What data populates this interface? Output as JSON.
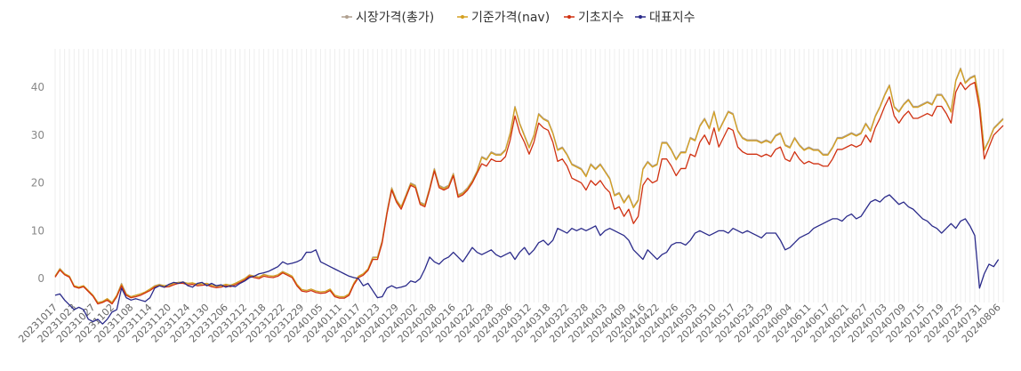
{
  "chart_data": {
    "type": "line",
    "ylim": [
      -5,
      48
    ],
    "y_ticks": [
      "0",
      "10",
      "20",
      "30",
      "40"
    ],
    "grid": true,
    "legend_position": "top-center",
    "x_tick_labels": [
      "20231017",
      "20231023",
      "20231027",
      "20231102",
      "20231108",
      "20231114",
      "20231120",
      "20231124",
      "20231130",
      "20231206",
      "20231212",
      "20231218",
      "20231222",
      "20231229",
      "20240105",
      "20240111",
      "20240117",
      "20240123",
      "20240129",
      "20240202",
      "20240208",
      "20240216",
      "20240222",
      "20240228",
      "20240306",
      "20240312",
      "20240318",
      "20240322",
      "20240328",
      "20240403",
      "20240409",
      "20240416",
      "20240422",
      "20240426",
      "20240503",
      "20240510",
      "20240517",
      "20240523",
      "20240529",
      "20240604",
      "20240611",
      "20240617",
      "20240621",
      "20240627",
      "20240703",
      "20240709",
      "20240715",
      "20240719",
      "20240725",
      "20240731",
      "20240806"
    ],
    "series": [
      {
        "name": "시장가격(총가)",
        "color": "#b0a090",
        "values": [
          0.5,
          2.1,
          1.0,
          0.5,
          -1.5,
          -1.8,
          -1.5,
          -2.5,
          -3.5,
          -5.0,
          -4.8,
          -4.2,
          -5.0,
          -3.5,
          -1.0,
          -3.2,
          -3.8,
          -3.5,
          -3.2,
          -2.8,
          -2.2,
          -1.5,
          -1.2,
          -1.5,
          -1.4,
          -1.0,
          -0.8,
          -0.7,
          -1.0,
          -0.9,
          -1.2,
          -1.1,
          -1.0,
          -1.4,
          -1.6,
          -1.5,
          -1.2,
          -1.4,
          -1.0,
          -0.5,
          0.0,
          0.8,
          0.5,
          0.3,
          0.9,
          0.6,
          0.5,
          0.8,
          1.5,
          1.0,
          0.5,
          -1.2,
          -2.3,
          -2.5,
          -2.2,
          -2.6,
          -2.8,
          -2.7,
          -2.2,
          -3.5,
          -3.8,
          -3.8,
          -3.2,
          -1.0,
          0.5,
          1.0,
          2.0,
          4.5,
          4.5,
          8.0,
          14.0,
          19.0,
          16.5,
          15.0,
          17.5,
          20.0,
          19.5,
          16.0,
          15.5,
          19.0,
          23.0,
          19.5,
          19.0,
          19.5,
          22.0,
          17.5,
          18.0,
          19.0,
          20.5,
          22.5,
          25.5,
          25.0,
          26.5,
          26.0,
          26.0,
          27.0,
          30.5,
          36.0,
          32.5,
          30.0,
          27.5,
          30.0,
          34.5,
          33.5,
          33.0,
          30.5,
          27.0,
          27.5,
          26.0,
          24.0,
          23.5,
          23.0,
          21.5,
          24.0,
          23.0,
          24.0,
          22.5,
          21.0,
          17.5,
          18.0,
          16.0,
          17.5,
          15.0,
          16.5,
          23.0,
          24.5,
          23.5,
          24.0,
          28.5,
          28.5,
          27.0,
          25.0,
          26.5,
          26.5,
          29.5,
          29.0,
          32.0,
          33.5,
          31.5,
          35.0,
          31.0,
          33.0,
          35.0,
          34.5,
          31.0,
          29.5,
          29.0,
          29.0,
          29.0,
          28.5,
          29.0,
          28.5,
          30.0,
          30.5,
          28.0,
          27.5,
          29.5,
          28.0,
          27.0,
          27.5,
          27.0,
          27.0,
          26.0,
          26.0,
          27.5,
          29.5,
          29.5,
          30.0,
          30.5,
          30.0,
          30.5,
          32.5,
          31.0,
          34.0,
          36.0,
          38.5,
          40.5,
          36.0,
          35.0,
          36.5,
          37.5,
          36.0,
          36.0,
          36.5,
          37.0,
          36.5,
          38.5,
          38.5,
          37.0,
          35.0,
          41.5,
          44.0,
          41.0,
          42.0,
          42.5,
          37.0,
          27.0,
          29.0,
          31.5,
          32.5,
          33.5
        ]
      },
      {
        "name": "기준가격(nav)",
        "color": "#d4a020",
        "values": [
          0.5,
          2.0,
          1.0,
          0.5,
          -1.5,
          -1.8,
          -1.5,
          -2.5,
          -3.5,
          -5.0,
          -4.8,
          -4.2,
          -5.0,
          -3.5,
          -1.2,
          -3.3,
          -3.8,
          -3.5,
          -3.2,
          -2.8,
          -2.2,
          -1.6,
          -1.3,
          -1.5,
          -1.4,
          -1.0,
          -0.8,
          -0.8,
          -1.0,
          -0.9,
          -1.2,
          -1.1,
          -1.0,
          -1.4,
          -1.6,
          -1.5,
          -1.2,
          -1.4,
          -1.0,
          -0.5,
          0.0,
          0.7,
          0.5,
          0.3,
          0.8,
          0.6,
          0.5,
          0.8,
          1.4,
          1.0,
          0.5,
          -1.2,
          -2.3,
          -2.5,
          -2.2,
          -2.6,
          -2.8,
          -2.7,
          -2.2,
          -3.5,
          -3.8,
          -3.8,
          -3.2,
          -1.0,
          0.5,
          1.0,
          2.0,
          4.3,
          4.4,
          7.8,
          13.8,
          18.8,
          16.3,
          15.0,
          17.3,
          19.8,
          19.3,
          15.8,
          15.3,
          18.8,
          22.8,
          19.3,
          18.8,
          19.3,
          21.8,
          17.3,
          17.8,
          18.8,
          20.3,
          22.3,
          25.3,
          24.8,
          26.3,
          25.8,
          25.8,
          26.8,
          30.3,
          35.8,
          32.3,
          29.8,
          27.3,
          29.8,
          34.3,
          33.3,
          32.8,
          30.3,
          26.8,
          27.3,
          25.8,
          23.8,
          23.3,
          22.8,
          21.3,
          23.8,
          22.8,
          23.8,
          22.3,
          20.8,
          17.3,
          17.8,
          15.8,
          17.3,
          14.8,
          16.3,
          22.8,
          24.3,
          23.3,
          23.8,
          28.3,
          28.3,
          26.8,
          24.8,
          26.3,
          26.3,
          29.3,
          28.8,
          31.8,
          33.3,
          31.3,
          34.8,
          30.8,
          32.8,
          34.8,
          34.3,
          30.8,
          29.3,
          28.8,
          28.8,
          28.8,
          28.3,
          28.8,
          28.3,
          29.8,
          30.3,
          27.8,
          27.3,
          29.3,
          27.8,
          26.8,
          27.3,
          26.8,
          26.8,
          25.8,
          25.8,
          27.3,
          29.3,
          29.3,
          29.8,
          30.3,
          29.8,
          30.3,
          32.3,
          30.8,
          33.8,
          35.8,
          38.3,
          40.3,
          35.8,
          34.8,
          36.3,
          37.3,
          35.8,
          35.8,
          36.3,
          36.8,
          36.3,
          38.3,
          38.3,
          36.8,
          34.8,
          41.3,
          43.8,
          40.8,
          41.8,
          42.3,
          36.8,
          26.8,
          28.8,
          31.3,
          32.3,
          33.3
        ]
      },
      {
        "name": "기초지수",
        "color": "#d03010",
        "values": [
          0.3,
          1.8,
          0.8,
          0.3,
          -1.7,
          -2.0,
          -1.7,
          -2.7,
          -3.7,
          -5.3,
          -5.0,
          -4.5,
          -5.3,
          -3.8,
          -1.5,
          -3.5,
          -4.0,
          -3.8,
          -3.5,
          -3.0,
          -2.5,
          -1.8,
          -1.5,
          -1.8,
          -1.7,
          -1.3,
          -1.0,
          -1.0,
          -1.3,
          -1.2,
          -1.5,
          -1.4,
          -1.3,
          -1.7,
          -1.9,
          -1.8,
          -1.5,
          -1.7,
          -1.3,
          -0.8,
          -0.3,
          0.5,
          0.2,
          0.0,
          0.5,
          0.3,
          0.2,
          0.5,
          1.2,
          0.7,
          0.2,
          -1.5,
          -2.6,
          -2.8,
          -2.5,
          -2.9,
          -3.1,
          -3.0,
          -2.5,
          -3.8,
          -4.1,
          -4.1,
          -3.5,
          -1.3,
          0.2,
          0.7,
          1.7,
          4.0,
          4.0,
          7.5,
          13.5,
          18.5,
          16.0,
          14.5,
          17.0,
          19.5,
          19.0,
          15.5,
          15.0,
          18.5,
          22.5,
          19.0,
          18.5,
          19.0,
          21.5,
          17.0,
          17.5,
          18.5,
          20.0,
          22.0,
          24.0,
          23.5,
          25.0,
          24.5,
          24.5,
          25.5,
          29.0,
          34.0,
          30.5,
          28.5,
          26.0,
          28.5,
          32.5,
          31.5,
          31.0,
          28.5,
          24.5,
          25.0,
          23.5,
          21.0,
          20.5,
          20.0,
          18.5,
          20.5,
          19.5,
          20.5,
          19.0,
          18.0,
          14.5,
          15.0,
          13.0,
          14.5,
          11.5,
          13.0,
          19.5,
          21.0,
          20.0,
          20.5,
          25.0,
          25.0,
          23.5,
          21.5,
          23.0,
          23.0,
          26.0,
          25.5,
          28.5,
          30.0,
          28.0,
          31.5,
          27.5,
          29.5,
          31.5,
          31.0,
          27.5,
          26.5,
          26.0,
          26.0,
          26.0,
          25.5,
          26.0,
          25.5,
          27.0,
          27.5,
          25.0,
          24.5,
          26.5,
          25.0,
          24.0,
          24.5,
          24.0,
          24.0,
          23.5,
          23.5,
          25.0,
          27.0,
          27.0,
          27.5,
          28.0,
          27.5,
          28.0,
          30.0,
          28.5,
          31.5,
          33.5,
          36.0,
          38.0,
          34.0,
          32.5,
          34.0,
          35.0,
          33.5,
          33.5,
          34.0,
          34.5,
          34.0,
          36.0,
          36.0,
          34.5,
          32.5,
          39.0,
          41.0,
          39.5,
          40.5,
          41.0,
          35.5,
          25.0,
          27.5,
          30.0,
          31.0,
          32.0
        ]
      },
      {
        "name": "대표지수",
        "color": "#2a2a8a",
        "values": [
          -3.5,
          -3.2,
          -4.5,
          -5.5,
          -6.5,
          -6.0,
          -6.5,
          -8.5,
          -9.0,
          -8.5,
          -9.5,
          -8.5,
          -7.0,
          -6.5,
          -2.0,
          -4.0,
          -4.5,
          -4.2,
          -4.5,
          -4.8,
          -4.0,
          -2.0,
          -1.5,
          -1.8,
          -1.2,
          -0.8,
          -1.0,
          -0.7,
          -1.5,
          -1.8,
          -1.0,
          -0.8,
          -1.5,
          -1.0,
          -1.5,
          -1.3,
          -1.8,
          -1.5,
          -1.7,
          -1.0,
          -0.5,
          0.2,
          0.5,
          1.0,
          1.2,
          1.5,
          2.0,
          2.5,
          3.5,
          3.0,
          3.2,
          3.5,
          4.0,
          5.5,
          5.5,
          6.0,
          3.5,
          3.0,
          2.5,
          2.0,
          1.5,
          1.0,
          0.5,
          0.2,
          0.0,
          -1.5,
          -1.0,
          -2.5,
          -4.0,
          -3.8,
          -2.0,
          -1.5,
          -2.0,
          -1.8,
          -1.5,
          -0.5,
          -0.8,
          0.0,
          2.0,
          4.5,
          3.5,
          3.0,
          4.0,
          4.5,
          5.5,
          4.5,
          3.5,
          5.0,
          6.5,
          5.5,
          5.0,
          5.5,
          6.0,
          5.0,
          4.5,
          5.0,
          5.5,
          4.0,
          5.5,
          6.5,
          5.0,
          6.0,
          7.5,
          8.0,
          7.0,
          8.0,
          10.5,
          10.0,
          9.5,
          10.5,
          10.0,
          10.5,
          10.0,
          10.5,
          11.0,
          9.0,
          10.0,
          10.5,
          10.0,
          9.5,
          9.0,
          8.0,
          6.0,
          5.0,
          4.0,
          6.0,
          5.0,
          4.0,
          5.0,
          5.5,
          7.0,
          7.5,
          7.5,
          7.0,
          8.0,
          9.5,
          10.0,
          9.5,
          9.0,
          9.5,
          10.0,
          10.0,
          9.5,
          10.5,
          10.0,
          9.5,
          10.0,
          9.5,
          9.0,
          8.5,
          9.5,
          9.5,
          9.5,
          8.0,
          6.0,
          6.5,
          7.5,
          8.5,
          9.0,
          9.5,
          10.5,
          11.0,
          11.5,
          12.0,
          12.5,
          12.5,
          12.0,
          13.0,
          13.5,
          12.5,
          13.0,
          14.5,
          16.0,
          16.5,
          16.0,
          17.0,
          17.5,
          16.5,
          15.5,
          16.0,
          15.0,
          14.5,
          13.5,
          12.5,
          12.0,
          11.0,
          10.5,
          9.5,
          10.5,
          11.5,
          10.5,
          12.0,
          12.5,
          11.0,
          9.0,
          -2.0,
          1.0,
          3.0,
          2.5,
          4.0
        ]
      }
    ]
  }
}
